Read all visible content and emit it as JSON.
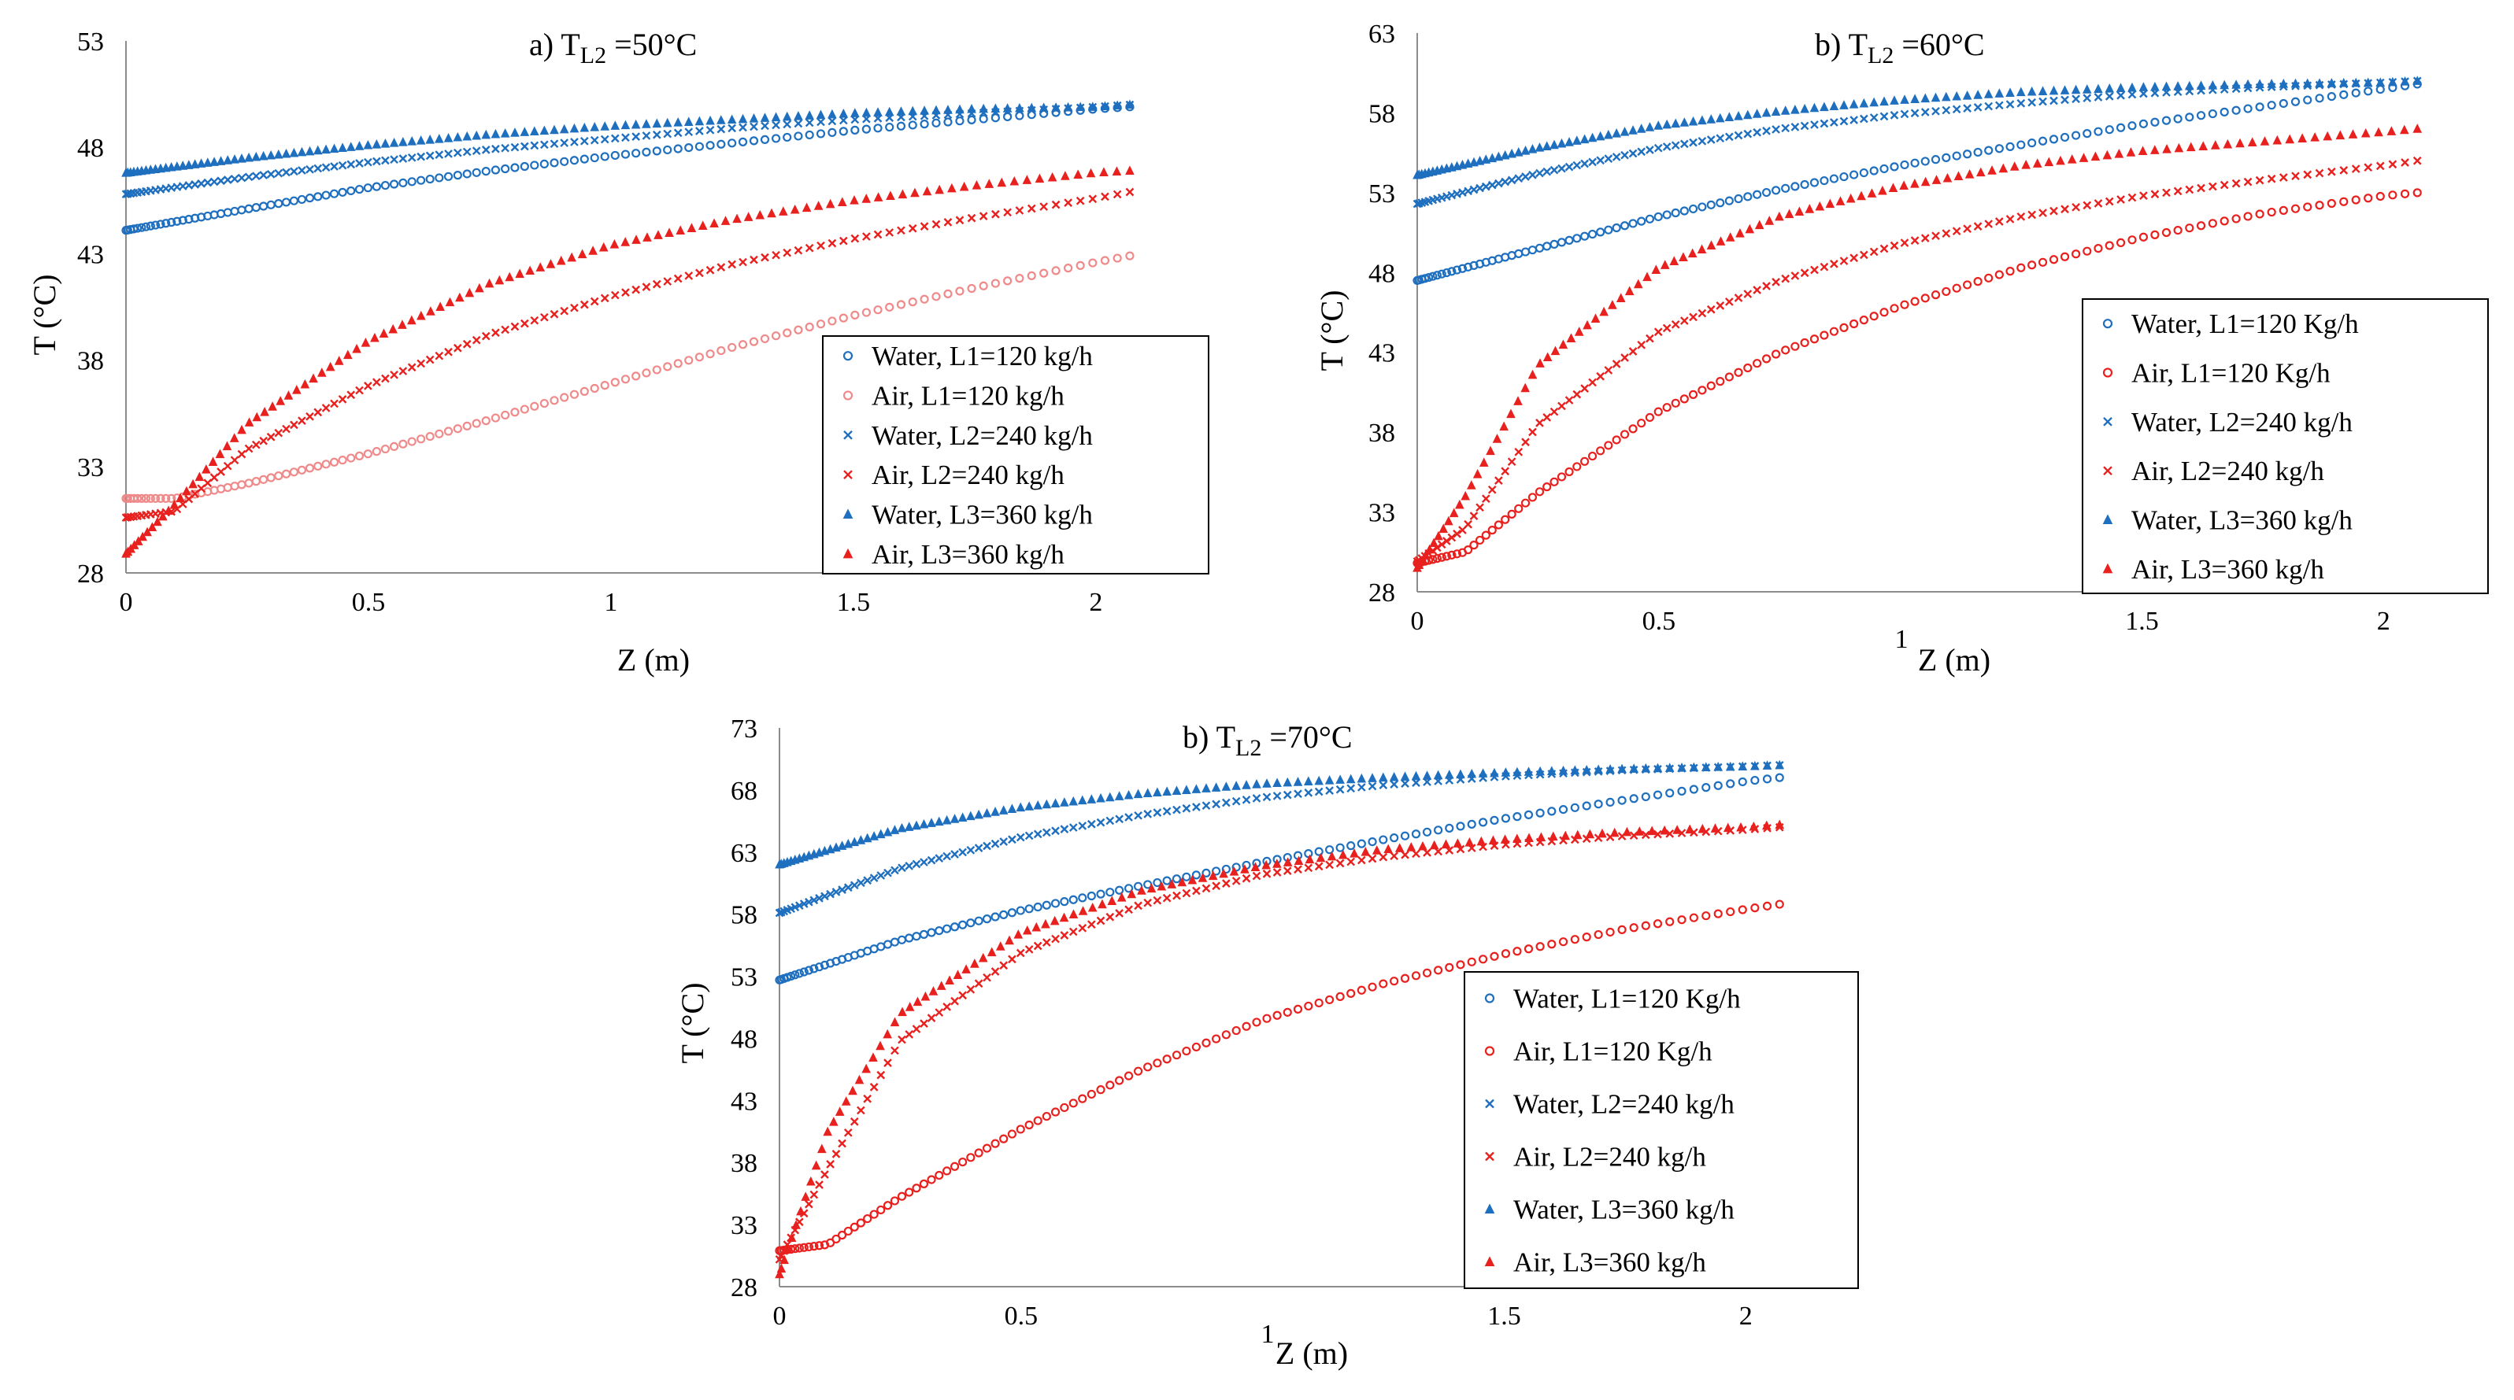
{
  "colors": {
    "water": "#1f6fbf",
    "air": "#e8201e",
    "air_light": "#f08a8a"
  },
  "chart_data": [
    {
      "type": "scatter",
      "title": "a)  T",
      "title_sub": "L2",
      "title_rest": " =50°C",
      "xlabel": "Z (m)",
      "ylabel": "T (°C)",
      "xlim": [
        0,
        2.2
      ],
      "ylim": [
        28,
        53
      ],
      "xticks": [
        "0",
        "0.5",
        "1",
        "1.5",
        "2"
      ],
      "yticks": [
        "28",
        "33",
        "38",
        "43",
        "48",
        "53"
      ],
      "grid": false,
      "legend_position": "right",
      "series": [
        {
          "name": "Water, L1=120 kg/h",
          "marker": "circle",
          "color": "#1f6fbf",
          "points": [
            [
              0,
              44.1
            ],
            [
              0.25,
              45.1
            ],
            [
              0.5,
              46.1
            ],
            [
              0.75,
              46.9
            ],
            [
              1,
              47.6
            ],
            [
              1.25,
              48.2
            ],
            [
              1.5,
              48.8
            ],
            [
              1.75,
              49.3
            ],
            [
              2,
              49.8
            ],
            [
              2.07,
              49.9
            ]
          ]
        },
        {
          "name": "Air, L1=120 kg/h",
          "marker": "circle",
          "color": "#f08a8a",
          "points": [
            [
              0,
              31.5
            ],
            [
              0.1,
              31.5
            ],
            [
              0.25,
              32.2
            ],
            [
              0.5,
              33.6
            ],
            [
              0.75,
              35.2
            ],
            [
              1,
              36.9
            ],
            [
              1.25,
              38.6
            ],
            [
              1.5,
              40.1
            ],
            [
              1.75,
              41.4
            ],
            [
              2,
              42.6
            ],
            [
              2.07,
              42.9
            ]
          ]
        },
        {
          "name": "Water, L2=240 kg/h",
          "marker": "x",
          "color": "#1f6fbf",
          "points": [
            [
              0,
              45.8
            ],
            [
              0.25,
              46.6
            ],
            [
              0.5,
              47.3
            ],
            [
              0.75,
              47.9
            ],
            [
              1,
              48.4
            ],
            [
              1.25,
              48.9
            ],
            [
              1.5,
              49.3
            ],
            [
              1.75,
              49.6
            ],
            [
              2,
              49.9
            ],
            [
              2.07,
              50
            ]
          ]
        },
        {
          "name": "Air, L2=240 kg/h",
          "marker": "x",
          "color": "#e8201e",
          "points": [
            [
              0,
              30.6
            ],
            [
              0.1,
              30.9
            ],
            [
              0.25,
              33.8
            ],
            [
              0.5,
              36.8
            ],
            [
              0.75,
              39.2
            ],
            [
              1,
              41
            ],
            [
              1.25,
              42.5
            ],
            [
              1.5,
              43.7
            ],
            [
              1.75,
              44.7
            ],
            [
              2,
              45.6
            ],
            [
              2.07,
              45.9
            ]
          ]
        },
        {
          "name": "Water, L3=360 kg/h",
          "marker": "triangle",
          "color": "#1f6fbf",
          "points": [
            [
              0,
              46.8
            ],
            [
              0.25,
              47.5
            ],
            [
              0.5,
              48.1
            ],
            [
              0.75,
              48.6
            ],
            [
              1,
              49
            ],
            [
              1.25,
              49.3
            ],
            [
              1.5,
              49.6
            ],
            [
              1.75,
              49.8
            ],
            [
              2,
              49.9
            ],
            [
              2.07,
              50
            ]
          ]
        },
        {
          "name": "Air, L3=360 kg/h",
          "marker": "triangle",
          "color": "#e8201e",
          "points": [
            [
              0,
              28.9
            ],
            [
              0.1,
              31.2
            ],
            [
              0.25,
              35
            ],
            [
              0.5,
              38.9
            ],
            [
              0.75,
              41.6
            ],
            [
              1,
              43.4
            ],
            [
              1.25,
              44.6
            ],
            [
              1.5,
              45.5
            ],
            [
              1.75,
              46.2
            ],
            [
              2,
              46.8
            ],
            [
              2.07,
              46.9
            ]
          ]
        }
      ]
    },
    {
      "type": "scatter",
      "title": "b) T",
      "title_sub": "L2",
      "title_rest": " =60°C",
      "xlabel": "Z (m)",
      "ylabel": "T (°C)",
      "x_axis_stray_label": "1",
      "xlim": [
        0,
        2.2
      ],
      "ylim": [
        28,
        63
      ],
      "xticks": [
        "0",
        "0.5",
        "",
        "1.5",
        "2"
      ],
      "yticks": [
        "28",
        "33",
        "38",
        "43",
        "48",
        "53",
        "58",
        "63"
      ],
      "grid": false,
      "legend_position": "right",
      "series": [
        {
          "name": "Water, L1=120 Kg/h",
          "marker": "circle",
          "color": "#1f6fbf",
          "points": [
            [
              0,
              47.5
            ],
            [
              0.25,
              49.5
            ],
            [
              0.5,
              51.5
            ],
            [
              0.75,
              53.2
            ],
            [
              1,
              54.7
            ],
            [
              1.25,
              56
            ],
            [
              1.5,
              57.3
            ],
            [
              1.75,
              58.4
            ],
            [
              2,
              59.5
            ],
            [
              2.07,
              59.8
            ]
          ]
        },
        {
          "name": "Air, L1=120 Kg/h",
          "marker": "circle",
          "color": "#e8201e",
          "points": [
            [
              0,
              29.8
            ],
            [
              0.1,
              30.5
            ],
            [
              0.25,
              34.2
            ],
            [
              0.5,
              39.3
            ],
            [
              0.75,
              43
            ],
            [
              1,
              45.9
            ],
            [
              1.25,
              48.3
            ],
            [
              1.5,
              50.2
            ],
            [
              1.75,
              51.7
            ],
            [
              2,
              52.8
            ],
            [
              2.07,
              53
            ]
          ]
        },
        {
          "name": "Water, L2=240 kg/h",
          "marker": "x",
          "color": "#1f6fbf",
          "points": [
            [
              0,
              52.3
            ],
            [
              0.25,
              54.2
            ],
            [
              0.5,
              55.8
            ],
            [
              0.75,
              57
            ],
            [
              1,
              57.9
            ],
            [
              1.25,
              58.6
            ],
            [
              1.5,
              59.2
            ],
            [
              1.75,
              59.6
            ],
            [
              2,
              59.9
            ],
            [
              2.07,
              60
            ]
          ]
        },
        {
          "name": "Air, L2=240 kg/h",
          "marker": "x",
          "color": "#e8201e",
          "points": [
            [
              0,
              29.9
            ],
            [
              0.1,
              32
            ],
            [
              0.25,
              38.5
            ],
            [
              0.5,
              44.3
            ],
            [
              0.75,
              47.5
            ],
            [
              1,
              49.8
            ],
            [
              1.25,
              51.5
            ],
            [
              1.5,
              52.8
            ],
            [
              1.75,
              53.8
            ],
            [
              2,
              54.7
            ],
            [
              2.07,
              55
            ]
          ]
        },
        {
          "name": "Water, L3=360 kg/h",
          "marker": "triangle",
          "color": "#1f6fbf",
          "points": [
            [
              0,
              54.1
            ],
            [
              0.25,
              55.8
            ],
            [
              0.5,
              57.2
            ],
            [
              0.75,
              58.1
            ],
            [
              1,
              58.8
            ],
            [
              1.25,
              59.3
            ],
            [
              1.5,
              59.6
            ],
            [
              1.75,
              59.8
            ],
            [
              2,
              59.9
            ],
            [
              2.07,
              60
            ]
          ]
        },
        {
          "name": "Air, L3=360 kg/h",
          "marker": "triangle",
          "color": "#e8201e",
          "points": [
            [
              0,
              29.5
            ],
            [
              0.1,
              34
            ],
            [
              0.25,
              42.2
            ],
            [
              0.5,
              48.3
            ],
            [
              0.75,
              51.5
            ],
            [
              1,
              53.4
            ],
            [
              1.25,
              54.7
            ],
            [
              1.5,
              55.6
            ],
            [
              1.75,
              56.2
            ],
            [
              2,
              56.8
            ],
            [
              2.07,
              57
            ]
          ]
        }
      ]
    },
    {
      "type": "scatter",
      "title": "b) T",
      "title_sub": "L2",
      "title_rest": " =70°C",
      "xlabel": "Z (m)",
      "ylabel": "T (°C)",
      "x_axis_stray_label": "1",
      "xlim": [
        0,
        2.2
      ],
      "ylim": [
        28,
        73
      ],
      "xticks": [
        "0",
        "0.5",
        "",
        "1.5",
        "2"
      ],
      "yticks": [
        "28",
        "33",
        "38",
        "43",
        "48",
        "53",
        "58",
        "63",
        "68",
        "73"
      ],
      "grid": false,
      "legend_position": "right",
      "series": [
        {
          "name": "Water, L1=120 Kg/h",
          "marker": "circle",
          "color": "#1f6fbf",
          "points": [
            [
              0,
              52.7
            ],
            [
              0.25,
              55.9
            ],
            [
              0.5,
              58.3
            ],
            [
              0.75,
              60.3
            ],
            [
              1,
              62.2
            ],
            [
              1.25,
              64
            ],
            [
              1.5,
              65.7
            ],
            [
              1.75,
              67.2
            ],
            [
              2,
              68.7
            ],
            [
              2.07,
              69
            ]
          ]
        },
        {
          "name": "Air, L1=120 Kg/h",
          "marker": "circle",
          "color": "#e8201e",
          "points": [
            [
              0,
              30.9
            ],
            [
              0.1,
              31.4
            ],
            [
              0.25,
              35.2
            ],
            [
              0.5,
              40.7
            ],
            [
              0.75,
              45.5
            ],
            [
              1,
              49.5
            ],
            [
              1.25,
              52.4
            ],
            [
              1.5,
              54.8
            ],
            [
              1.75,
              56.8
            ],
            [
              2,
              58.4
            ],
            [
              2.07,
              58.8
            ]
          ]
        },
        {
          "name": "Water, L2=240 kg/h",
          "marker": "x",
          "color": "#1f6fbf",
          "points": [
            [
              0,
              58.1
            ],
            [
              0.25,
              61.7
            ],
            [
              0.5,
              64.2
            ],
            [
              0.75,
              66
            ],
            [
              1,
              67.4
            ],
            [
              1.25,
              68.4
            ],
            [
              1.5,
              69.1
            ],
            [
              1.75,
              69.6
            ],
            [
              2,
              69.9
            ],
            [
              2.07,
              70
            ]
          ]
        },
        {
          "name": "Air, L2=240 kg/h",
          "marker": "x",
          "color": "#e8201e",
          "points": [
            [
              0,
              30.2
            ],
            [
              0.1,
              37.5
            ],
            [
              0.25,
              47.8
            ],
            [
              0.5,
              54.9
            ],
            [
              0.75,
              58.8
            ],
            [
              1,
              61.2
            ],
            [
              1.25,
              62.6
            ],
            [
              1.5,
              63.6
            ],
            [
              1.75,
              64.3
            ],
            [
              2,
              64.8
            ],
            [
              2.07,
              65
            ]
          ]
        },
        {
          "name": "Water, L3=360 kg/h",
          "marker": "triangle",
          "color": "#1f6fbf",
          "points": [
            [
              0,
              62
            ],
            [
              0.25,
              64.9
            ],
            [
              0.5,
              66.6
            ],
            [
              0.75,
              67.7
            ],
            [
              1,
              68.5
            ],
            [
              1.25,
              69
            ],
            [
              1.5,
              69.4
            ],
            [
              1.75,
              69.7
            ],
            [
              2,
              69.9
            ],
            [
              2.07,
              70
            ]
          ]
        },
        {
          "name": "Air, L3=360 kg/h",
          "marker": "triangle",
          "color": "#e8201e",
          "points": [
            [
              0,
              29
            ],
            [
              0.1,
              40.5
            ],
            [
              0.25,
              50
            ],
            [
              0.5,
              56.5
            ],
            [
              0.75,
              59.9
            ],
            [
              1,
              61.9
            ],
            [
              1.25,
              63.2
            ],
            [
              1.5,
              64
            ],
            [
              1.75,
              64.6
            ],
            [
              2,
              65
            ],
            [
              2.07,
              65.2
            ]
          ]
        }
      ]
    }
  ]
}
